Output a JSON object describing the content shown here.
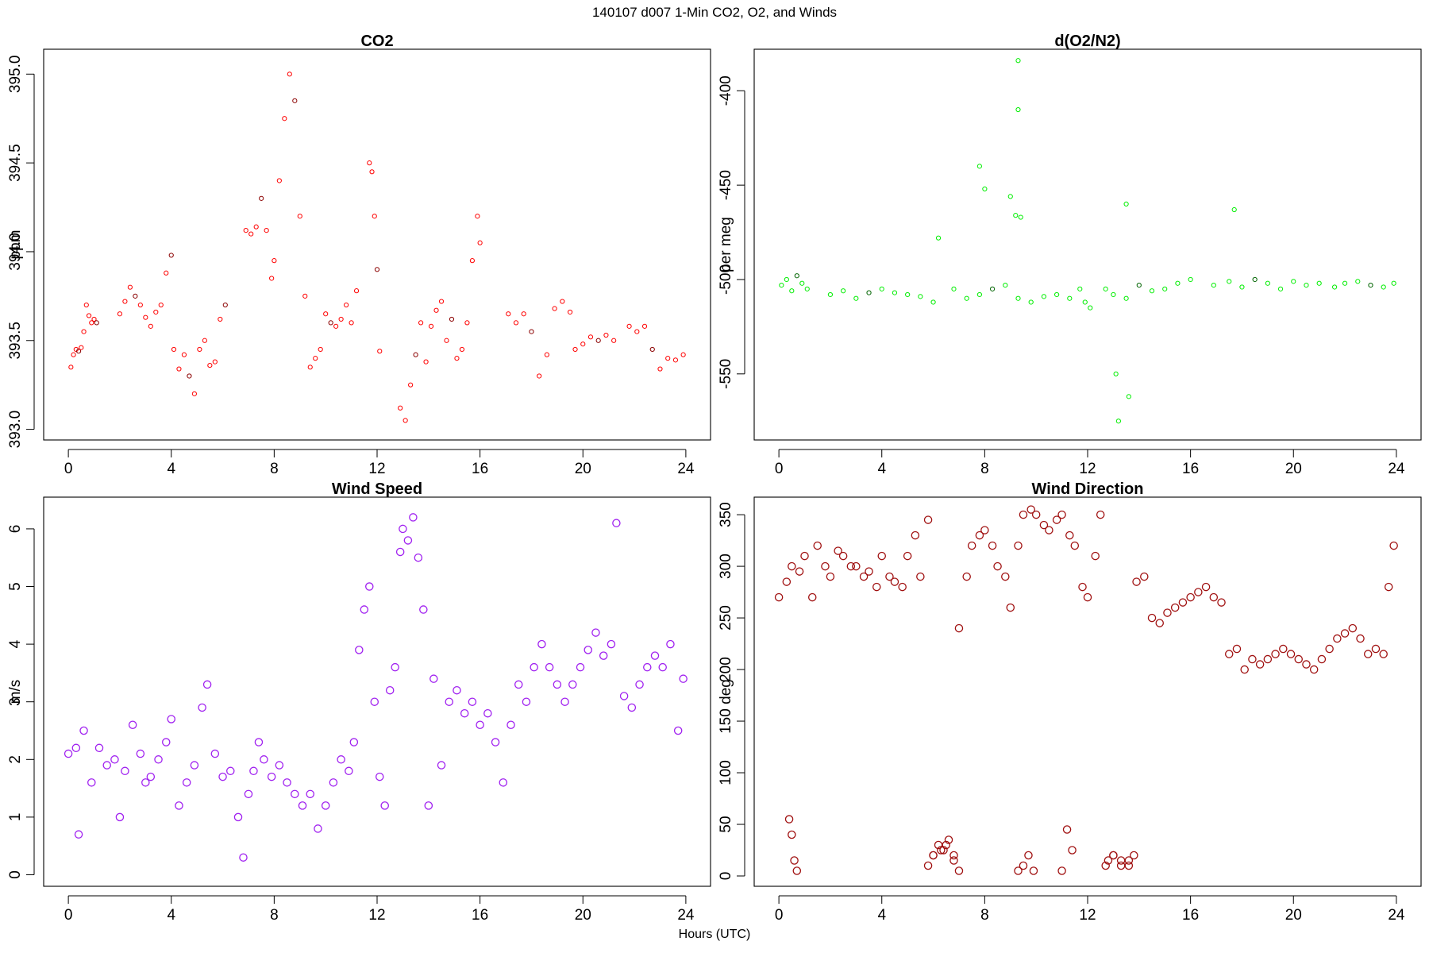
{
  "page": {
    "suptitle": "140107   d007   1-Min CO2, O2, and Winds",
    "xlabel": "Hours (UTC)"
  },
  "chart_data": [
    {
      "type": "scatter",
      "title": "CO2",
      "xlabel": "Hours (UTC)",
      "ylabel": "ppm",
      "xlim": [
        -0.96,
        24.96
      ],
      "ylim": [
        392.94,
        395.14
      ],
      "xticks": [
        0,
        4,
        8,
        12,
        16,
        20,
        24
      ],
      "yticks": [
        393.0,
        393.5,
        394.0,
        394.5,
        395.0
      ],
      "ytick_labels": [
        "393.0",
        "393.5",
        "394.0",
        "394.5",
        "395.0"
      ],
      "color": "#ff0000",
      "secondary_color": "#8b0000",
      "marker_size": "small",
      "grid": false,
      "series": [
        {
          "x": [
            0.1,
            0.2,
            0.3,
            0.4,
            0.5,
            0.6,
            0.7,
            0.8,
            0.9,
            1.0,
            1.1
          ],
          "y": [
            393.35,
            393.42,
            393.45,
            393.44,
            393.46,
            393.55,
            393.7,
            393.64,
            393.6,
            393.62,
            393.6
          ]
        },
        {
          "x": [
            2.0,
            2.2,
            2.4,
            2.6,
            2.8,
            3.0,
            3.2,
            3.4,
            3.6,
            3.8,
            4.0
          ],
          "y": [
            393.65,
            393.72,
            393.8,
            393.75,
            393.7,
            393.63,
            393.58,
            393.66,
            393.7,
            393.88,
            393.98
          ]
        },
        {
          "x": [
            4.1,
            4.3,
            4.5,
            4.7,
            4.9,
            5.1,
            5.3,
            5.5,
            5.7,
            5.9,
            6.1
          ],
          "y": [
            393.45,
            393.34,
            393.42,
            393.3,
            393.2,
            393.45,
            393.5,
            393.36,
            393.38,
            393.62,
            393.7
          ]
        },
        {
          "x": [
            6.9,
            7.1,
            7.3,
            7.5,
            7.7,
            7.9,
            8.0,
            8.2,
            8.4,
            8.6,
            8.8,
            9.0,
            9.2,
            9.4
          ],
          "y": [
            394.12,
            394.1,
            394.14,
            394.3,
            394.12,
            393.85,
            393.95,
            394.4,
            394.75,
            395.0,
            394.85,
            394.2,
            393.75,
            393.35
          ]
        },
        {
          "x": [
            9.6,
            9.8,
            10.0,
            10.2,
            10.4,
            10.6,
            10.8,
            11.0,
            11.2
          ],
          "y": [
            393.4,
            393.45,
            393.65,
            393.6,
            393.58,
            393.62,
            393.7,
            393.6,
            393.78
          ]
        },
        {
          "x": [
            11.7,
            11.8,
            11.9,
            12.0,
            12.1
          ],
          "y": [
            394.5,
            394.45,
            394.2,
            393.9,
            393.44
          ]
        },
        {
          "x": [
            12.9,
            13.1,
            13.3,
            13.5,
            13.7,
            13.9,
            14.1,
            14.3,
            14.5,
            14.7,
            14.9,
            15.1,
            15.3,
            15.5,
            15.7,
            15.9,
            16.0
          ],
          "y": [
            393.12,
            393.05,
            393.25,
            393.42,
            393.6,
            393.38,
            393.58,
            393.67,
            393.72,
            393.5,
            393.62,
            393.4,
            393.45,
            393.6,
            393.95,
            394.2,
            394.05
          ]
        },
        {
          "x": [
            17.1,
            17.4,
            17.7,
            18.0,
            18.3,
            18.6,
            18.9,
            19.2,
            19.5
          ],
          "y": [
            393.65,
            393.6,
            393.65,
            393.55,
            393.3,
            393.42,
            393.68,
            393.72,
            393.66
          ]
        },
        {
          "x": [
            19.7,
            20.0,
            20.3,
            20.6,
            20.9,
            21.2
          ],
          "y": [
            393.45,
            393.48,
            393.52,
            393.5,
            393.53,
            393.5
          ]
        },
        {
          "x": [
            21.8,
            22.1,
            22.4,
            22.7,
            23.0,
            23.3,
            23.6,
            23.9
          ],
          "y": [
            393.58,
            393.55,
            393.58,
            393.45,
            393.34,
            393.4,
            393.39,
            393.42
          ]
        }
      ]
    },
    {
      "type": "scatter",
      "title": "d(O2/N2)",
      "xlabel": "Hours (UTC)",
      "ylabel": "per meg",
      "xlim": [
        -0.96,
        24.96
      ],
      "ylim": [
        -585,
        -378
      ],
      "xticks": [
        0,
        4,
        8,
        12,
        16,
        20,
        24
      ],
      "yticks": [
        -550,
        -500,
        -450,
        -400
      ],
      "ytick_labels": [
        "-550",
        "-500",
        "-450",
        "-400"
      ],
      "color": "#00ee00",
      "secondary_color": "#006400",
      "marker_size": "small",
      "grid": false,
      "series": [
        {
          "x": [
            0.1,
            0.3,
            0.5,
            0.7,
            0.9,
            1.1
          ],
          "y": [
            -503,
            -500,
            -506,
            -498,
            -502,
            -505
          ]
        },
        {
          "x": [
            2.0,
            2.5,
            3.0,
            3.5,
            4.0,
            4.5,
            5.0,
            5.5,
            6.0,
            6.2
          ],
          "y": [
            -508,
            -506,
            -510,
            -507,
            -505,
            -507,
            -508,
            -509,
            -512,
            -478
          ]
        },
        {
          "x": [
            6.8,
            7.3,
            7.8,
            8.3,
            8.8,
            9.3,
            9.8,
            10.3,
            10.8,
            11.3
          ],
          "y": [
            -505,
            -510,
            -508,
            -505,
            -503,
            -510,
            -512,
            -509,
            -508,
            -510
          ]
        },
        {
          "x": [
            11.7,
            11.9,
            12.1
          ],
          "y": [
            -505,
            -512,
            -515
          ]
        },
        {
          "x": [
            12.7,
            13.0,
            13.5,
            14.0,
            14.5,
            15.0,
            15.5,
            16.0
          ],
          "y": [
            -505,
            -508,
            -510,
            -503,
            -506,
            -505,
            -502,
            -500
          ]
        },
        {
          "x": [
            16.9,
            17.5,
            18.0,
            18.5,
            19.0,
            19.5,
            20.0,
            20.5,
            21.0
          ],
          "y": [
            -503,
            -501,
            -504,
            -500,
            -502,
            -505,
            -501,
            -503,
            -502
          ]
        },
        {
          "x": [
            21.6,
            22.0,
            22.5,
            23.0,
            23.5,
            23.9
          ],
          "y": [
            -504,
            -502,
            -501,
            -503,
            -504,
            -502
          ]
        }
      ],
      "outliers": {
        "x": [
          7.8,
          8.0,
          9.0,
          9.2,
          9.3,
          9.3,
          9.4,
          13.1,
          13.2,
          13.5,
          13.6,
          17.7
        ],
        "y": [
          -440,
          -452,
          -456,
          -466,
          -410,
          -384,
          -467,
          -550,
          -575,
          -460,
          -562,
          -463
        ]
      }
    },
    {
      "type": "scatter",
      "title": "Wind Speed",
      "xlabel": "Hours (UTC)",
      "ylabel": "m/s",
      "xlim": [
        -0.96,
        24.96
      ],
      "ylim": [
        -0.2,
        6.55
      ],
      "xticks": [
        0,
        4,
        8,
        12,
        16,
        20,
        24
      ],
      "yticks": [
        0,
        1,
        2,
        3,
        4,
        5,
        6
      ],
      "ytick_labels": [
        "0",
        "1",
        "2",
        "3",
        "4",
        "5",
        "6"
      ],
      "color": "#a020f0",
      "marker_size": "large",
      "grid": false,
      "series": [
        {
          "x": [
            0.0,
            0.3,
            0.4,
            0.6,
            0.9,
            1.2,
            1.5,
            1.8,
            2.0,
            2.2,
            2.5,
            2.8,
            3.0,
            3.2,
            3.5,
            3.8,
            4.0,
            4.3,
            4.6,
            4.9,
            5.2,
            5.4,
            5.7,
            6.0,
            6.3,
            6.6,
            6.8,
            7.0,
            7.2,
            7.4,
            7.6,
            7.9,
            8.2,
            8.5,
            8.8,
            9.1,
            9.4,
            9.7,
            10.0,
            10.3,
            10.6,
            10.9,
            11.1,
            11.3,
            11.5,
            11.7,
            11.9,
            12.1,
            12.3,
            12.5,
            12.7,
            12.9,
            13.0,
            13.2,
            13.4,
            13.6,
            13.8,
            14.0,
            14.2,
            14.5,
            14.8,
            15.1,
            15.4,
            15.7,
            16.0,
            16.3,
            16.6,
            16.9,
            17.2,
            17.5,
            17.8,
            18.1,
            18.4,
            18.7,
            19.0,
            19.3,
            19.6,
            19.9,
            20.2,
            20.5,
            20.8,
            21.1,
            21.3,
            21.6,
            21.9,
            22.2,
            22.5,
            22.8,
            23.1,
            23.4,
            23.7,
            23.9
          ],
          "y": [
            2.1,
            2.2,
            0.7,
            2.5,
            1.6,
            2.2,
            1.9,
            2.0,
            1.0,
            1.8,
            2.6,
            2.1,
            1.6,
            1.7,
            2.0,
            2.3,
            2.7,
            1.2,
            1.6,
            1.9,
            2.9,
            3.3,
            2.1,
            1.7,
            1.8,
            1.0,
            0.3,
            1.4,
            1.8,
            2.3,
            2.0,
            1.7,
            1.9,
            1.6,
            1.4,
            1.2,
            1.4,
            0.8,
            1.2,
            1.6,
            2.0,
            1.8,
            2.3,
            3.9,
            4.6,
            5.0,
            3.0,
            1.7,
            1.2,
            3.2,
            3.6,
            5.6,
            6.0,
            5.8,
            6.2,
            5.5,
            4.6,
            1.2,
            3.4,
            1.9,
            3.0,
            3.2,
            2.8,
            3.0,
            2.6,
            2.8,
            2.3,
            1.6,
            2.6,
            3.3,
            3.0,
            3.6,
            4.0,
            3.6,
            3.3,
            3.0,
            3.3,
            3.6,
            3.9,
            4.2,
            3.8,
            4.0,
            6.1,
            3.1,
            2.9,
            3.3,
            3.6,
            3.8,
            3.6,
            4.0,
            2.5,
            3.4
          ]
        }
      ]
    },
    {
      "type": "scatter",
      "title": "Wind Direction",
      "xlabel": "Hours (UTC)",
      "ylabel": "deg",
      "xlim": [
        -0.96,
        24.96
      ],
      "ylim": [
        -10,
        367
      ],
      "xticks": [
        0,
        4,
        8,
        12,
        16,
        20,
        24
      ],
      "yticks": [
        0,
        50,
        100,
        150,
        200,
        250,
        300,
        350
      ],
      "ytick_labels": [
        "0",
        "50",
        "100",
        "150",
        "200",
        "250",
        "300",
        "350"
      ],
      "color": "#a01010",
      "marker_size": "large",
      "grid": false,
      "series": [
        {
          "x": [
            0.0,
            0.3,
            0.5,
            0.8,
            1.0,
            1.3,
            1.5,
            1.8,
            2.0,
            2.3,
            2.5,
            2.8,
            3.0,
            3.3,
            3.5,
            3.8,
            4.0,
            4.3,
            4.5,
            4.8,
            5.0,
            5.3,
            5.5,
            5.8,
            6.0,
            6.3,
            6.5,
            6.8,
            7.0,
            7.3,
            7.5,
            7.8,
            8.0,
            8.3,
            8.5,
            8.8,
            9.0,
            9.3,
            9.5,
            9.8,
            10.0,
            10.3,
            10.5,
            10.8,
            11.0,
            11.3,
            11.5,
            11.8,
            12.0,
            12.3,
            12.5,
            12.8,
            13.0,
            13.3,
            13.6,
            13.9,
            14.2,
            14.5,
            14.8,
            15.1,
            15.4,
            15.7,
            16.0,
            16.3,
            16.6,
            16.9,
            17.2,
            17.5,
            17.8,
            18.1,
            18.4,
            18.7,
            19.0,
            19.3,
            19.6,
            19.9,
            20.2,
            20.5,
            20.8,
            21.1,
            21.4,
            21.7,
            22.0,
            22.3,
            22.6,
            22.9,
            23.2,
            23.5,
            23.7,
            23.9
          ],
          "y": [
            270,
            285,
            300,
            295,
            310,
            270,
            320,
            300,
            290,
            315,
            310,
            300,
            300,
            290,
            295,
            280,
            310,
            290,
            285,
            280,
            310,
            330,
            290,
            345,
            20,
            25,
            30,
            20,
            240,
            290,
            320,
            330,
            335,
            320,
            300,
            290,
            260,
            320,
            350,
            355,
            350,
            340,
            335,
            345,
            350,
            330,
            320,
            280,
            270,
            310,
            350,
            15,
            20,
            10,
            15,
            285,
            290,
            250,
            245,
            255,
            260,
            265,
            270,
            275,
            280,
            270,
            265,
            215,
            220,
            200,
            210,
            205,
            210,
            215,
            220,
            215,
            210,
            205,
            200,
            210,
            220,
            230,
            235,
            240,
            230,
            215,
            220,
            215,
            280,
            320
          ]
        },
        {
          "x": [
            0.4,
            0.5,
            0.6,
            0.7,
            5.8,
            6.0,
            6.2,
            6.4,
            6.6,
            6.8,
            7.0,
            9.3,
            9.5,
            9.7,
            9.9,
            11.0,
            11.2,
            11.4,
            12.7,
            13.0,
            13.3,
            13.6,
            13.8
          ],
          "y": [
            55,
            40,
            15,
            5,
            10,
            20,
            30,
            25,
            35,
            15,
            5,
            5,
            10,
            20,
            5,
            5,
            45,
            25,
            10,
            20,
            15,
            10,
            20
          ]
        }
      ]
    }
  ]
}
